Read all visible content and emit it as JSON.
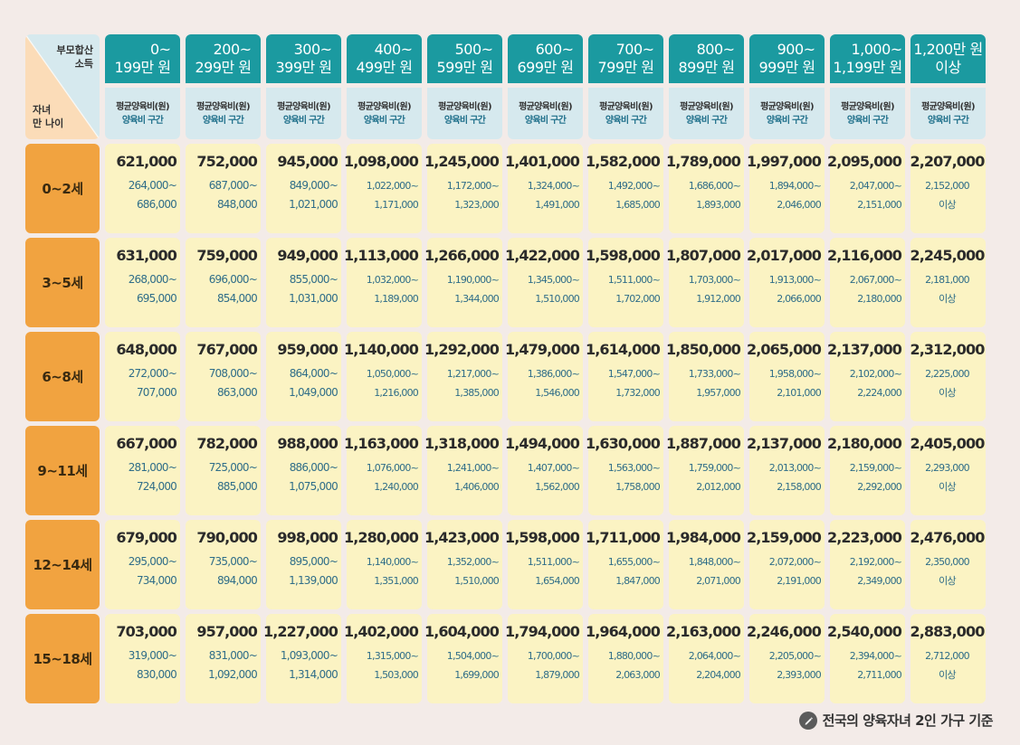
{
  "corner": {
    "income_label": [
      "부모합산",
      "소득"
    ],
    "age_label": [
      "자녀",
      "만 나이"
    ]
  },
  "sub_header": {
    "avg_label": "평균양육비(원)",
    "range_label": "양육비 구간"
  },
  "brackets": [
    [
      "0~",
      "199만 원"
    ],
    [
      "200~",
      "299만 원"
    ],
    [
      "300~",
      "399만 원"
    ],
    [
      "400~",
      "499만 원"
    ],
    [
      "500~",
      "599만 원"
    ],
    [
      "600~",
      "699만 원"
    ],
    [
      "700~",
      "799만 원"
    ],
    [
      "800~",
      "899만 원"
    ],
    [
      "900~",
      "999만 원"
    ],
    [
      "1,000~",
      "1,199만 원"
    ],
    [
      "1,200만 원",
      "이상"
    ]
  ],
  "rows": [
    {
      "age": "0~2세",
      "cells": [
        {
          "avg": "621,000",
          "r1": "264,000~",
          "r2": "686,000"
        },
        {
          "avg": "752,000",
          "r1": "687,000~",
          "r2": "848,000"
        },
        {
          "avg": "945,000",
          "r1": "849,000~",
          "r2": "1,021,000"
        },
        {
          "avg": "1,098,000",
          "r1": "1,022,000~",
          "r2": "1,171,000"
        },
        {
          "avg": "1,245,000",
          "r1": "1,172,000~",
          "r2": "1,323,000"
        },
        {
          "avg": "1,401,000",
          "r1": "1,324,000~",
          "r2": "1,491,000"
        },
        {
          "avg": "1,582,000",
          "r1": "1,492,000~",
          "r2": "1,685,000"
        },
        {
          "avg": "1,789,000",
          "r1": "1,686,000~",
          "r2": "1,893,000"
        },
        {
          "avg": "1,997,000",
          "r1": "1,894,000~",
          "r2": "2,046,000"
        },
        {
          "avg": "2,095,000",
          "r1": "2,047,000~",
          "r2": "2,151,000"
        },
        {
          "avg": "2,207,000",
          "r1": "2,152,000",
          "r2": "이상"
        }
      ]
    },
    {
      "age": "3~5세",
      "cells": [
        {
          "avg": "631,000",
          "r1": "268,000~",
          "r2": "695,000"
        },
        {
          "avg": "759,000",
          "r1": "696,000~",
          "r2": "854,000"
        },
        {
          "avg": "949,000",
          "r1": "855,000~",
          "r2": "1,031,000"
        },
        {
          "avg": "1,113,000",
          "r1": "1,032,000~",
          "r2": "1,189,000"
        },
        {
          "avg": "1,266,000",
          "r1": "1,190,000~",
          "r2": "1,344,000"
        },
        {
          "avg": "1,422,000",
          "r1": "1,345,000~",
          "r2": "1,510,000"
        },
        {
          "avg": "1,598,000",
          "r1": "1,511,000~",
          "r2": "1,702,000"
        },
        {
          "avg": "1,807,000",
          "r1": "1,703,000~",
          "r2": "1,912,000"
        },
        {
          "avg": "2,017,000",
          "r1": "1,913,000~",
          "r2": "2,066,000"
        },
        {
          "avg": "2,116,000",
          "r1": "2,067,000~",
          "r2": "2,180,000"
        },
        {
          "avg": "2,245,000",
          "r1": "2,181,000",
          "r2": "이상"
        }
      ]
    },
    {
      "age": "6~8세",
      "cells": [
        {
          "avg": "648,000",
          "r1": "272,000~",
          "r2": "707,000"
        },
        {
          "avg": "767,000",
          "r1": "708,000~",
          "r2": "863,000"
        },
        {
          "avg": "959,000",
          "r1": "864,000~",
          "r2": "1,049,000"
        },
        {
          "avg": "1,140,000",
          "r1": "1,050,000~",
          "r2": "1,216,000"
        },
        {
          "avg": "1,292,000",
          "r1": "1,217,000~",
          "r2": "1,385,000"
        },
        {
          "avg": "1,479,000",
          "r1": "1,386,000~",
          "r2": "1,546,000"
        },
        {
          "avg": "1,614,000",
          "r1": "1,547,000~",
          "r2": "1,732,000"
        },
        {
          "avg": "1,850,000",
          "r1": "1,733,000~",
          "r2": "1,957,000"
        },
        {
          "avg": "2,065,000",
          "r1": "1,958,000~",
          "r2": "2,101,000"
        },
        {
          "avg": "2,137,000",
          "r1": "2,102,000~",
          "r2": "2,224,000"
        },
        {
          "avg": "2,312,000",
          "r1": "2,225,000",
          "r2": "이상"
        }
      ]
    },
    {
      "age": "9~11세",
      "cells": [
        {
          "avg": "667,000",
          "r1": "281,000~",
          "r2": "724,000"
        },
        {
          "avg": "782,000",
          "r1": "725,000~",
          "r2": "885,000"
        },
        {
          "avg": "988,000",
          "r1": "886,000~",
          "r2": "1,075,000"
        },
        {
          "avg": "1,163,000",
          "r1": "1,076,000~",
          "r2": "1,240,000"
        },
        {
          "avg": "1,318,000",
          "r1": "1,241,000~",
          "r2": "1,406,000"
        },
        {
          "avg": "1,494,000",
          "r1": "1,407,000~",
          "r2": "1,562,000"
        },
        {
          "avg": "1,630,000",
          "r1": "1,563,000~",
          "r2": "1,758,000"
        },
        {
          "avg": "1,887,000",
          "r1": "1,759,000~",
          "r2": "2,012,000"
        },
        {
          "avg": "2,137,000",
          "r1": "2,013,000~",
          "r2": "2,158,000"
        },
        {
          "avg": "2,180,000",
          "r1": "2,159,000~",
          "r2": "2,292,000"
        },
        {
          "avg": "2,405,000",
          "r1": "2,293,000",
          "r2": "이상"
        }
      ]
    },
    {
      "age": "12~14세",
      "cells": [
        {
          "avg": "679,000",
          "r1": "295,000~",
          "r2": "734,000"
        },
        {
          "avg": "790,000",
          "r1": "735,000~",
          "r2": "894,000"
        },
        {
          "avg": "998,000",
          "r1": "895,000~",
          "r2": "1,139,000"
        },
        {
          "avg": "1,280,000",
          "r1": "1,140,000~",
          "r2": "1,351,000"
        },
        {
          "avg": "1,423,000",
          "r1": "1,352,000~",
          "r2": "1,510,000"
        },
        {
          "avg": "1,598,000",
          "r1": "1,511,000~",
          "r2": "1,654,000"
        },
        {
          "avg": "1,711,000",
          "r1": "1,655,000~",
          "r2": "1,847,000"
        },
        {
          "avg": "1,984,000",
          "r1": "1,848,000~",
          "r2": "2,071,000"
        },
        {
          "avg": "2,159,000",
          "r1": "2,072,000~",
          "r2": "2,191,000"
        },
        {
          "avg": "2,223,000",
          "r1": "2,192,000~",
          "r2": "2,349,000"
        },
        {
          "avg": "2,476,000",
          "r1": "2,350,000",
          "r2": "이상"
        }
      ]
    },
    {
      "age": "15~18세",
      "cells": [
        {
          "avg": "703,000",
          "r1": "319,000~",
          "r2": "830,000"
        },
        {
          "avg": "957,000",
          "r1": "831,000~",
          "r2": "1,092,000"
        },
        {
          "avg": "1,227,000",
          "r1": "1,093,000~",
          "r2": "1,314,000"
        },
        {
          "avg": "1,402,000",
          "r1": "1,315,000~",
          "r2": "1,503,000"
        },
        {
          "avg": "1,604,000",
          "r1": "1,504,000~",
          "r2": "1,699,000"
        },
        {
          "avg": "1,794,000",
          "r1": "1,700,000~",
          "r2": "1,879,000"
        },
        {
          "avg": "1,964,000",
          "r1": "1,880,000~",
          "r2": "2,063,000"
        },
        {
          "avg": "2,163,000",
          "r1": "2,064,000~",
          "r2": "2,204,000"
        },
        {
          "avg": "2,246,000",
          "r1": "2,205,000~",
          "r2": "2,393,000"
        },
        {
          "avg": "2,540,000",
          "r1": "2,394,000~",
          "r2": "2,711,000"
        },
        {
          "avg": "2,883,000",
          "r1": "2,712,000",
          "r2": "이상"
        }
      ]
    }
  ],
  "footnote": {
    "text": "전국의 양육자녀 2인 가구 기준",
    "icon": "pen-icon"
  },
  "colors": {
    "header_teal": "#1b9aa0",
    "subheader_bg": "#d6e9ee",
    "age_orange": "#f1a340",
    "cell_yellow": "#fbf3c3",
    "range_blue": "#2f6d88"
  }
}
